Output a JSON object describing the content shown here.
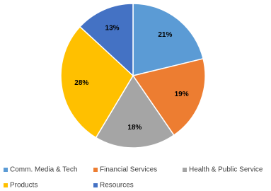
{
  "chart_data": {
    "type": "pie",
    "categories": [
      "Comm. Media & Tech",
      "Financial Services",
      "Health & Public Service",
      "Products",
      "Resources"
    ],
    "values": [
      21,
      19,
      18,
      28,
      13
    ],
    "value_labels": [
      "21%",
      "19%",
      "18%",
      "28%",
      "13%"
    ],
    "colors": [
      "#5b9bd5",
      "#ed7d31",
      "#a5a5a5",
      "#ffc000",
      "#4472c4"
    ],
    "legend": "bottom"
  }
}
